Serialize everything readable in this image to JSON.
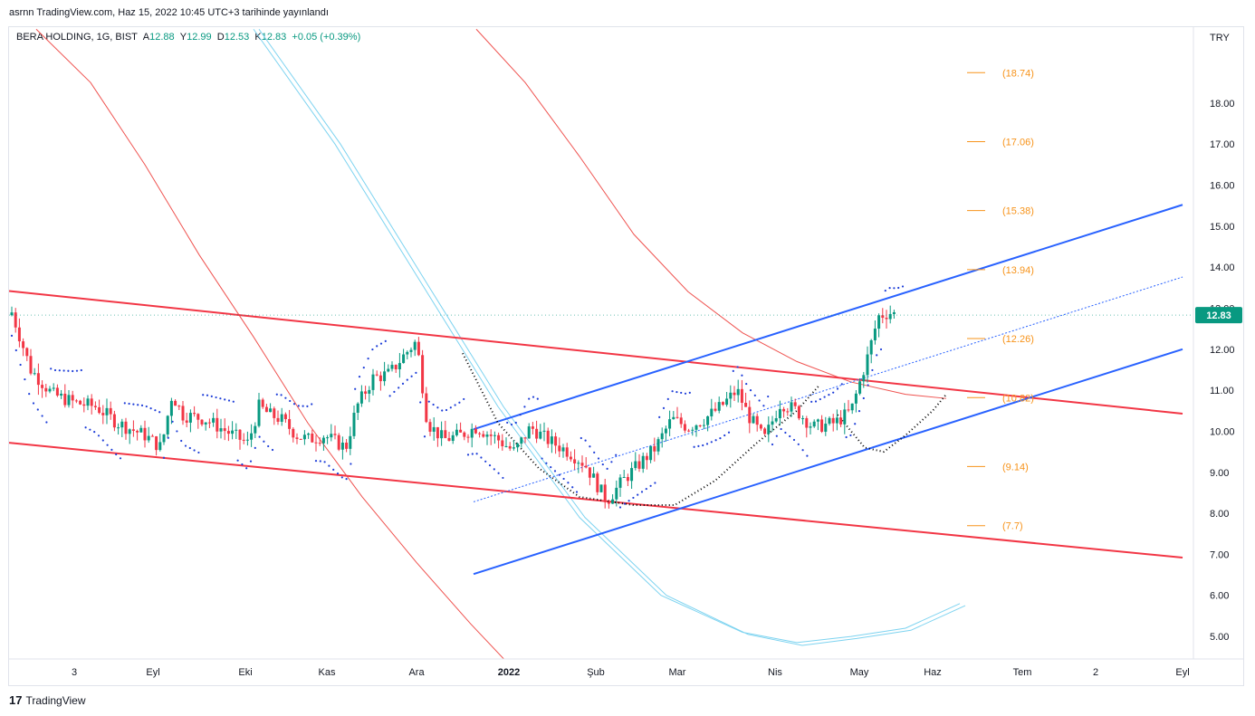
{
  "publication": "asrnn TradingView.com, Haz 15, 2022 10:45 UTC+3 tarihinde yayınlandı",
  "symbol": {
    "name": "BERA HOLDING, 1G, BIST",
    "open_label": "A",
    "open": "12.88",
    "high_label": "Y",
    "high": "12.99",
    "low_label": "D",
    "low": "12.53",
    "close_label": "K",
    "close": "12.83",
    "change": "+0.05 (+0.39%)"
  },
  "footer": {
    "logo": "17",
    "brand": "TradingView"
  },
  "colors": {
    "up": "#089981",
    "down": "#f23645",
    "channel_red": "#f23645",
    "channel_blue": "#2962ff",
    "ma_red": "#ef5350",
    "ma_cyan": "#7dd3f0",
    "fib": "#f7931a",
    "sar": "#1e3ed8",
    "axis_text": "#131722",
    "price_badge": "#089981"
  },
  "chart_data": {
    "type": "candlestick",
    "currency": "TRY",
    "current_price": "12.83",
    "ylim": [
      4.45,
      19.85
    ],
    "y_ticks": [
      "5.00",
      "6.00",
      "7.00",
      "8.00",
      "9.00",
      "10.00",
      "11.00",
      "12.00",
      "13.00",
      "14.00",
      "15.00",
      "16.00",
      "17.00",
      "18.00"
    ],
    "x_ticks": [
      "3",
      "Eyl",
      "Eki",
      "Kas",
      "Ara",
      "2022",
      "Şub",
      "Mar",
      "Nis",
      "May",
      "Haz",
      "Tem",
      "2",
      "Eyl"
    ],
    "fib_levels": [
      {
        "label": "(18.74)",
        "value": 18.74
      },
      {
        "label": "(17.06)",
        "value": 17.06
      },
      {
        "label": "(15.38)",
        "value": 15.38
      },
      {
        "label": "(13.94)",
        "value": 13.94
      },
      {
        "label": "(12.26)",
        "value": 12.26
      },
      {
        "label": "(10.82)",
        "value": 10.82
      },
      {
        "label": "(9.14)",
        "value": 9.14
      },
      {
        "label": "(7.7)",
        "value": 7.7
      }
    ],
    "close_path": [
      [
        1,
        12.9
      ],
      [
        8,
        11.5
      ],
      [
        16,
        10.9
      ],
      [
        24,
        10.7
      ],
      [
        32,
        10.6
      ],
      [
        40,
        10.2
      ],
      [
        50,
        9.9
      ],
      [
        56,
        9.6
      ],
      [
        60,
        10.9
      ],
      [
        64,
        10.4
      ],
      [
        72,
        10.3
      ],
      [
        80,
        10.0
      ],
      [
        88,
        9.7
      ],
      [
        92,
        10.6
      ],
      [
        96,
        10.4
      ],
      [
        100,
        10.3
      ],
      [
        106,
        9.9
      ],
      [
        110,
        9.8
      ],
      [
        116,
        9.9
      ],
      [
        124,
        9.6
      ],
      [
        128,
        10.6
      ],
      [
        134,
        11.3
      ],
      [
        140,
        11.4
      ],
      [
        146,
        11.9
      ],
      [
        150,
        12.2
      ],
      [
        154,
        10.2
      ],
      [
        160,
        9.8
      ],
      [
        166,
        9.9
      ],
      [
        172,
        10.1
      ],
      [
        180,
        9.8
      ],
      [
        186,
        9.5
      ],
      [
        192,
        10.1
      ],
      [
        198,
        9.8
      ],
      [
        206,
        9.5
      ],
      [
        212,
        9.2
      ],
      [
        220,
        8.3
      ],
      [
        226,
        8.8
      ],
      [
        232,
        9.2
      ],
      [
        238,
        9.6
      ],
      [
        244,
        10.3
      ],
      [
        250,
        10.1
      ],
      [
        256,
        10.3
      ],
      [
        262,
        10.6
      ],
      [
        268,
        11.0
      ],
      [
        272,
        10.4
      ],
      [
        278,
        9.8
      ],
      [
        284,
        10.7
      ],
      [
        290,
        10.5
      ],
      [
        296,
        10.1
      ],
      [
        304,
        10.2
      ],
      [
        310,
        10.5
      ],
      [
        316,
        11.8
      ],
      [
        320,
        12.8
      ],
      [
        324,
        12.9
      ],
      [
        327,
        12.83
      ]
    ],
    "parabolic_sar_note": "dotted indicator markers above/below price"
  }
}
